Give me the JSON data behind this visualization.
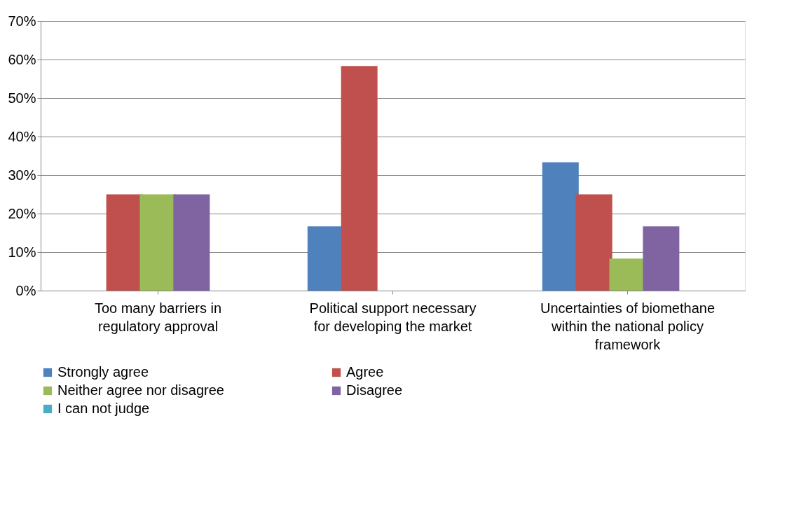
{
  "chart_data": {
    "type": "bar",
    "categories": [
      "Too many barriers in regulatory approval",
      "Political support necessary for developing the market",
      "Uncertainties of biomethane within the national policy framework"
    ],
    "series": [
      {
        "name": "Strongly agree",
        "color": "#4f81bd",
        "values": [
          0,
          16.7,
          33.3
        ]
      },
      {
        "name": "Agree",
        "color": "#c0504d",
        "values": [
          25,
          58.3,
          25
        ]
      },
      {
        "name": "Neither agree nor disagree",
        "color": "#9bbb59",
        "values": [
          25,
          0,
          8.3
        ]
      },
      {
        "name": "Disagree",
        "color": "#8064a2",
        "values": [
          25,
          0,
          16.7
        ]
      },
      {
        "name": "I can not judge",
        "color": "#4bacc6",
        "values": [
          0,
          0,
          0
        ]
      }
    ],
    "ylim": [
      0,
      70
    ],
    "yticks": [
      {
        "value": 0,
        "label": "0%"
      },
      {
        "value": 10,
        "label": "10%"
      },
      {
        "value": 20,
        "label": "20%"
      },
      {
        "value": 30,
        "label": "30%"
      },
      {
        "value": 40,
        "label": "40%"
      },
      {
        "value": 50,
        "label": "50%"
      },
      {
        "value": 60,
        "label": "60%"
      },
      {
        "value": 70,
        "label": "70%"
      }
    ],
    "grid": "y",
    "legend": "bottom"
  }
}
